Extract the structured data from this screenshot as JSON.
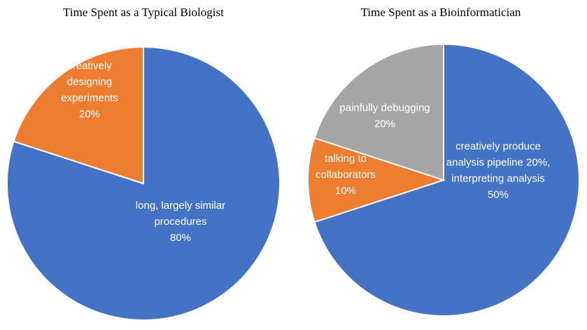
{
  "chart_data": [
    {
      "type": "pie",
      "title": "Time Spent as a Typical Biologist",
      "slices": [
        {
          "label_lines": [
            "long, largely similar",
            "procedures",
            "80%"
          ],
          "value": 80,
          "color": "#4472C4"
        },
        {
          "label_lines": [
            "creatively",
            "designing",
            "experiments",
            "20%"
          ],
          "value": 20,
          "color": "#ED7D31"
        }
      ]
    },
    {
      "type": "pie",
      "title": "Time Spent as a Bioinformatician",
      "slices": [
        {
          "label_lines": [
            "creatively produce",
            "analysis pipeline 20%,",
            "interpreting analysis",
            "50%"
          ],
          "value": 70,
          "color": "#4472C4"
        },
        {
          "label_lines": [
            "talking to",
            "collaborators",
            "10%"
          ],
          "value": 10,
          "color": "#ED7D31"
        },
        {
          "label_lines": [
            "painfully debugging",
            "20%"
          ],
          "value": 20,
          "color": "#A5A5A5"
        }
      ]
    }
  ]
}
